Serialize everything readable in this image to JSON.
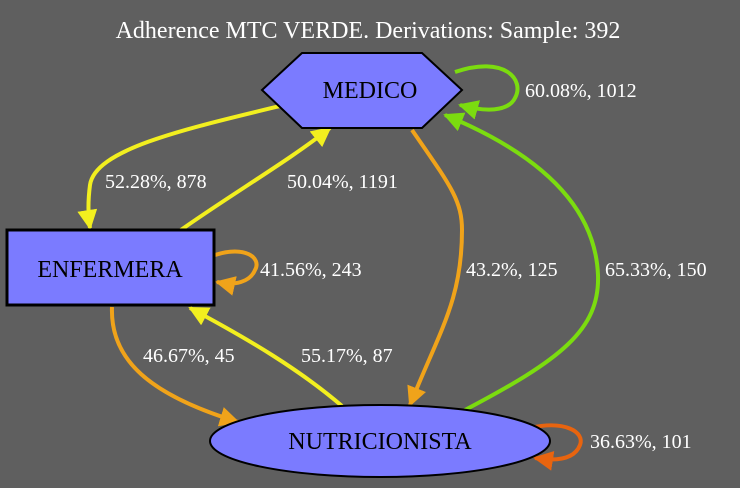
{
  "title": "Adherence MTC VERDE. Derivations: Sample: 392",
  "colors": {
    "background": "#5f5f5f",
    "node_fill": "#7b7bff",
    "yellow": "#f2ef1f",
    "orange": "#f0a31a",
    "green": "#7bdc0f",
    "dark_orange": "#e8640f"
  },
  "nodes": {
    "medico": {
      "label": "MEDICO",
      "shape": "hexagon"
    },
    "enfermera": {
      "label": "ENFERMERA",
      "shape": "box"
    },
    "nutricionista": {
      "label": "NUTRICIONISTA",
      "shape": "ellipse"
    }
  },
  "edges": {
    "medico_self": {
      "from": "MEDICO",
      "to": "MEDICO",
      "label": "60.08%, 1012",
      "color": "green"
    },
    "medico_enfermera": {
      "from": "MEDICO",
      "to": "ENFERMERA",
      "label": "52.28%, 878",
      "color": "yellow"
    },
    "enfermera_medico": {
      "from": "ENFERMERA",
      "to": "MEDICO",
      "label": "50.04%, 1191",
      "color": "yellow"
    },
    "enfermera_self": {
      "from": "ENFERMERA",
      "to": "ENFERMERA",
      "label": "41.56%, 243",
      "color": "orange"
    },
    "medico_nutricionista": {
      "from": "MEDICO",
      "to": "NUTRICIONISTA",
      "label": "43.2%, 125",
      "color": "orange"
    },
    "nutricionista_medico": {
      "from": "NUTRICIONISTA",
      "to": "MEDICO",
      "label": "65.33%, 150",
      "color": "green"
    },
    "enfermera_nutricionista": {
      "from": "ENFERMERA",
      "to": "NUTRICIONISTA",
      "label": "46.67%, 45",
      "color": "orange"
    },
    "nutricionista_enfermera": {
      "from": "NUTRICIONISTA",
      "to": "ENFERMERA",
      "label": "55.17%, 87",
      "color": "yellow"
    },
    "nutricionista_self": {
      "from": "NUTRICIONISTA",
      "to": "NUTRICIONISTA",
      "label": "36.63%, 101",
      "color": "dark_orange"
    }
  }
}
